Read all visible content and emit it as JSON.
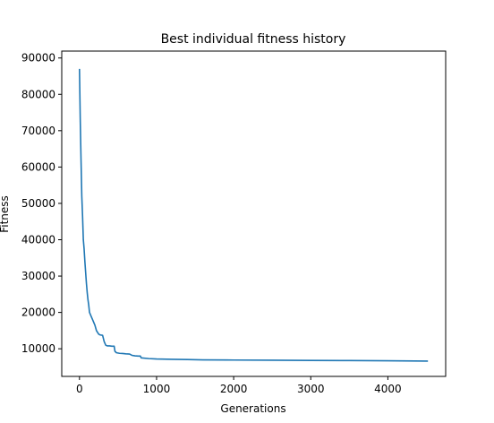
{
  "chart_data": {
    "type": "line",
    "title": "Best individual fitness history",
    "xlabel": "Generations",
    "ylabel": "Fitness",
    "xlim": [
      -230,
      4750
    ],
    "ylim": [
      2400,
      91900
    ],
    "xticks": [
      0,
      1000,
      2000,
      3000,
      4000
    ],
    "yticks": [
      10000,
      20000,
      30000,
      40000,
      50000,
      60000,
      70000,
      80000,
      90000
    ],
    "grid": false,
    "series_color": "#1f77b4",
    "series": [
      {
        "x": [
          0,
          10,
          20,
          30,
          40,
          50,
          60,
          70,
          80,
          90,
          100,
          110,
          120,
          130,
          150,
          170,
          200,
          220,
          250,
          270,
          300,
          320,
          340,
          360,
          390,
          420,
          450,
          460,
          480,
          520,
          560,
          600,
          650,
          680,
          720,
          760,
          790,
          800,
          900,
          1000,
          1200,
          1400,
          1600,
          2000,
          2500,
          3000,
          3500,
          4000,
          4520
        ],
        "y": [
          87000,
          73000,
          62000,
          52000,
          46500,
          40000,
          37500,
          34000,
          31000,
          28000,
          25500,
          23500,
          22000,
          20000,
          19000,
          18000,
          16500,
          15000,
          14000,
          13800,
          13700,
          12000,
          11000,
          10800,
          10800,
          10700,
          10700,
          9300,
          8900,
          8750,
          8700,
          8600,
          8550,
          8200,
          8050,
          8000,
          8000,
          7500,
          7300,
          7200,
          7100,
          7050,
          6950,
          6900,
          6850,
          6800,
          6750,
          6700,
          6600
        ]
      }
    ]
  }
}
